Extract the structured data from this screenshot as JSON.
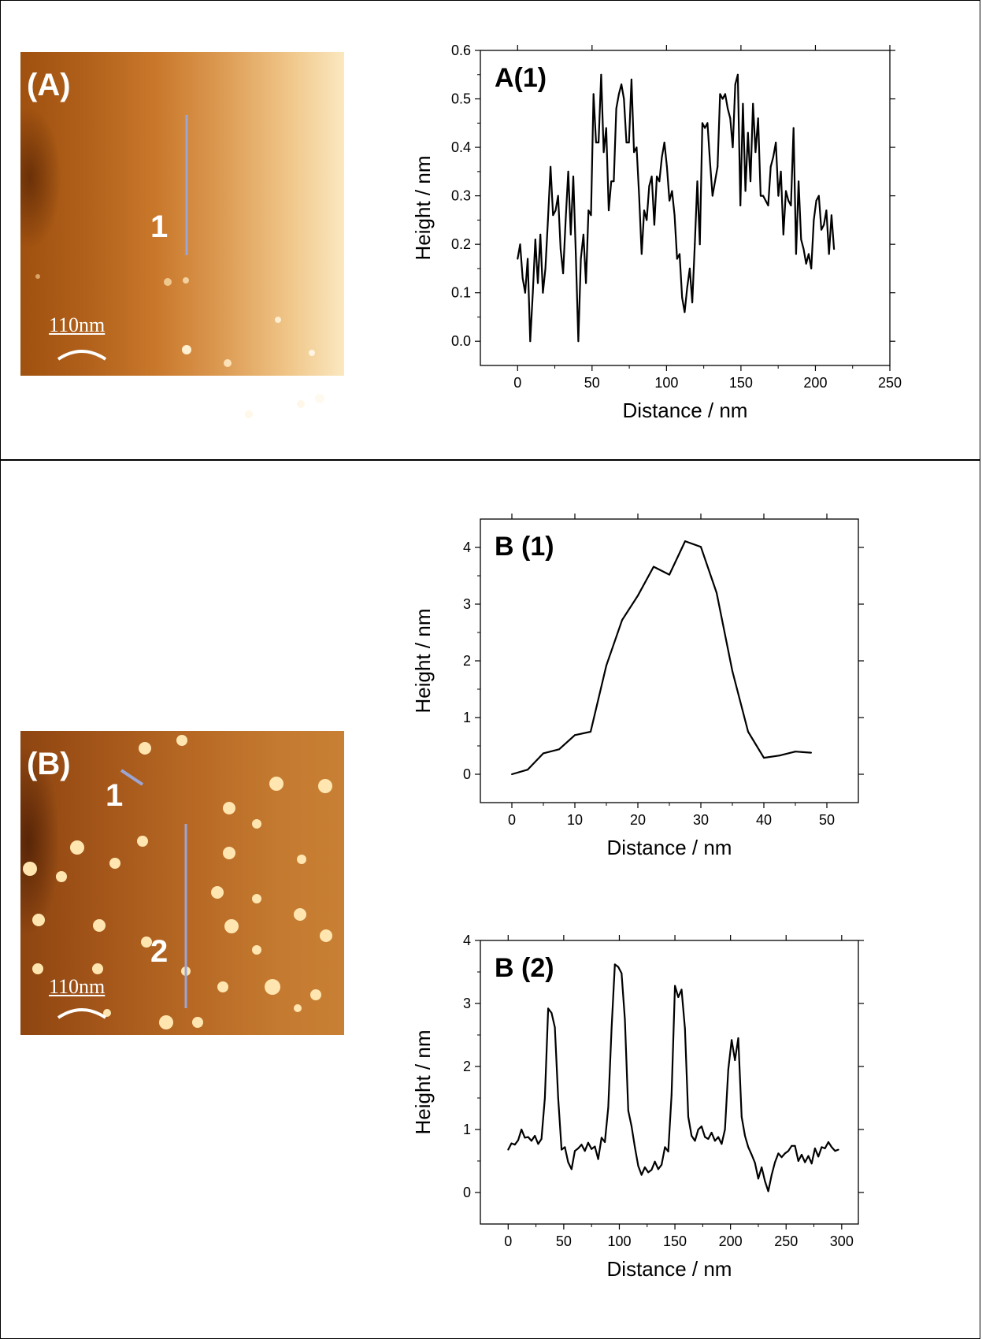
{
  "panels": {
    "A": {
      "image_label": "(A)",
      "line_label": "1",
      "scale_bar": "110nm"
    },
    "B": {
      "image_label": "(B)",
      "line_labels": [
        "1",
        "2"
      ],
      "scale_bar": "110nm"
    }
  },
  "colors": {
    "line_marker": "#9aa6d6",
    "plot_line": "#000000"
  },
  "chart_data": [
    {
      "type": "line",
      "title": "A(1)",
      "xlabel": "Distance / nm",
      "ylabel": "Height / nm",
      "xlim": [
        -25,
        250
      ],
      "ylim": [
        -0.05,
        0.6
      ],
      "xticks": [
        0,
        50,
        100,
        150,
        200,
        250
      ],
      "xticklabels": [
        "0",
        "50",
        "100",
        "150",
        "200",
        "250"
      ],
      "yticks": [
        0.0,
        0.1,
        0.2,
        0.3,
        0.4,
        0.5,
        0.6
      ],
      "yticklabels": [
        "0.0",
        "0.1",
        "0.2",
        "0.3",
        "0.4",
        "0.5",
        "0.6"
      ],
      "x": [
        0,
        1.7,
        3.4,
        5.1,
        6.8,
        8.5,
        10.2,
        11.9,
        13.6,
        15.3,
        17,
        18.7,
        20.4,
        22.1,
        23.8,
        25.5,
        27.2,
        28.9,
        30.6,
        32.3,
        34,
        35.7,
        37.4,
        39.1,
        40.8,
        42.5,
        44.2,
        45.9,
        47.6,
        49.3,
        51,
        52.7,
        54.4,
        56.1,
        57.8,
        59.5,
        61.2,
        62.9,
        64.6,
        66.3,
        68,
        69.7,
        71.4,
        73.1,
        74.8,
        76.5,
        78.2,
        79.9,
        81.6,
        83.3,
        85,
        86.7,
        88.4,
        90.1,
        91.8,
        93.5,
        95.2,
        96.9,
        98.6,
        100.3,
        102,
        103.7,
        105.4,
        107.1,
        108.8,
        110.5,
        112.2,
        113.9,
        115.6,
        117.3,
        119,
        120.7,
        122.4,
        124.1,
        125.8,
        127.5,
        129.2,
        130.9,
        132.6,
        134.3,
        136,
        137.7,
        139.4,
        141.1,
        142.8,
        144.5,
        146.2,
        147.9,
        149.6,
        151.3,
        153,
        154.7,
        156.4,
        158.1,
        159.8,
        161.5,
        163.2,
        164.9,
        166.6,
        168.3,
        170,
        171.7,
        173.4,
        175.1,
        176.8,
        178.5,
        180.2,
        181.9,
        183.6,
        185.3,
        187,
        188.7,
        190.4,
        192.1,
        193.8,
        195.5,
        197.2,
        198.9,
        200.6,
        202.3,
        204,
        205.7,
        207.4,
        209.1,
        210.8,
        212.5
      ],
      "y": [
        0.17,
        0.2,
        0.13,
        0.1,
        0.17,
        0.0,
        0.1,
        0.21,
        0.12,
        0.22,
        0.1,
        0.15,
        0.25,
        0.36,
        0.26,
        0.27,
        0.3,
        0.19,
        0.14,
        0.25,
        0.35,
        0.22,
        0.34,
        0.18,
        0.0,
        0.17,
        0.22,
        0.12,
        0.27,
        0.26,
        0.51,
        0.41,
        0.41,
        0.55,
        0.39,
        0.44,
        0.27,
        0.33,
        0.33,
        0.48,
        0.51,
        0.53,
        0.5,
        0.41,
        0.41,
        0.54,
        0.39,
        0.4,
        0.3,
        0.18,
        0.27,
        0.25,
        0.32,
        0.34,
        0.24,
        0.34,
        0.33,
        0.38,
        0.41,
        0.36,
        0.29,
        0.31,
        0.26,
        0.17,
        0.18,
        0.09,
        0.06,
        0.11,
        0.15,
        0.08,
        0.2,
        0.33,
        0.2,
        0.45,
        0.44,
        0.45,
        0.37,
        0.3,
        0.33,
        0.36,
        0.51,
        0.5,
        0.51,
        0.48,
        0.46,
        0.4,
        0.53,
        0.55,
        0.28,
        0.49,
        0.31,
        0.43,
        0.33,
        0.49,
        0.39,
        0.46,
        0.3,
        0.3,
        0.29,
        0.28,
        0.36,
        0.38,
        0.41,
        0.3,
        0.35,
        0.22,
        0.31,
        0.29,
        0.28,
        0.44,
        0.18,
        0.33,
        0.21,
        0.19,
        0.16,
        0.18,
        0.15,
        0.25,
        0.29,
        0.3,
        0.23,
        0.24,
        0.27,
        0.18,
        0.26,
        0.19
      ]
    },
    {
      "type": "line",
      "title": "B (1)",
      "xlabel": "Distance / nm",
      "ylabel": "Height / nm",
      "xlim": [
        -5,
        55
      ],
      "ylim": [
        -0.5,
        4.5
      ],
      "xticks": [
        0,
        10,
        20,
        30,
        40,
        50
      ],
      "xticklabels": [
        "0",
        "10",
        "20",
        "30",
        "40",
        "50"
      ],
      "yticks": [
        0,
        1,
        2,
        3,
        4
      ],
      "yticklabels": [
        "0",
        "1",
        "2",
        "3",
        "4"
      ],
      "x": [
        0,
        2.5,
        5,
        7.5,
        10,
        12.5,
        15,
        17.5,
        20,
        22.5,
        25,
        27.5,
        30,
        32.5,
        35,
        37.5,
        40,
        42.5,
        45,
        47.5
      ],
      "y": [
        0.0,
        0.08,
        0.37,
        0.44,
        0.69,
        0.75,
        1.92,
        2.72,
        3.15,
        3.66,
        3.52,
        4.11,
        4.01,
        3.2,
        1.82,
        0.75,
        0.29,
        0.33,
        0.4,
        0.38
      ]
    },
    {
      "type": "line",
      "title": "B (2)",
      "xlabel": "Distance / nm",
      "ylabel": "Height / nm",
      "xlim": [
        -25,
        315
      ],
      "ylim": [
        -0.5,
        4.0
      ],
      "xticks": [
        0,
        50,
        100,
        150,
        200,
        250,
        300
      ],
      "xticklabels": [
        "0",
        "50",
        "100",
        "150",
        "200",
        "250",
        "300"
      ],
      "yticks": [
        0,
        1,
        2,
        3,
        4
      ],
      "yticklabels": [
        "0",
        "1",
        "2",
        "3",
        "4"
      ],
      "x": [
        0,
        3,
        6,
        9,
        12,
        15,
        18,
        21,
        24,
        27,
        30,
        33,
        36,
        39,
        42,
        45,
        48,
        51,
        54,
        57,
        60,
        63,
        66,
        69,
        72,
        75,
        78,
        81,
        84,
        87,
        90,
        93,
        96,
        99,
        102,
        105,
        108,
        111,
        114,
        117,
        120,
        123,
        126,
        129,
        132,
        135,
        138,
        141,
        144,
        147,
        150,
        153,
        156,
        159,
        162,
        165,
        168,
        171,
        174,
        177,
        180,
        183,
        186,
        189,
        192,
        195,
        198,
        201,
        204,
        207,
        210,
        213,
        216,
        219,
        222,
        225,
        228,
        231,
        234,
        237,
        240,
        243,
        246,
        249,
        252,
        255,
        258,
        261,
        264,
        267,
        270,
        273,
        276,
        279,
        282,
        285,
        288,
        291,
        294,
        297
      ],
      "y": [
        0.68,
        0.78,
        0.76,
        0.83,
        1.0,
        0.87,
        0.88,
        0.82,
        0.9,
        0.77,
        0.85,
        1.5,
        2.92,
        2.85,
        2.62,
        1.5,
        0.68,
        0.72,
        0.48,
        0.37,
        0.66,
        0.7,
        0.76,
        0.66,
        0.79,
        0.69,
        0.73,
        0.53,
        0.87,
        0.8,
        1.35,
        2.6,
        3.62,
        3.58,
        3.48,
        2.75,
        1.3,
        1.05,
        0.72,
        0.42,
        0.28,
        0.4,
        0.32,
        0.36,
        0.49,
        0.37,
        0.44,
        0.72,
        0.65,
        1.55,
        3.28,
        3.1,
        3.22,
        2.6,
        1.2,
        0.9,
        0.82,
        1.0,
        1.05,
        0.88,
        0.85,
        0.95,
        0.82,
        0.88,
        0.77,
        1.0,
        1.95,
        2.42,
        2.1,
        2.45,
        1.2,
        0.9,
        0.72,
        0.6,
        0.47,
        0.22,
        0.4,
        0.18,
        0.02,
        0.28,
        0.48,
        0.62,
        0.56,
        0.62,
        0.66,
        0.74,
        0.74,
        0.5,
        0.6,
        0.48,
        0.58,
        0.46,
        0.7,
        0.57,
        0.72,
        0.7,
        0.8,
        0.72,
        0.66,
        0.68
      ]
    }
  ]
}
